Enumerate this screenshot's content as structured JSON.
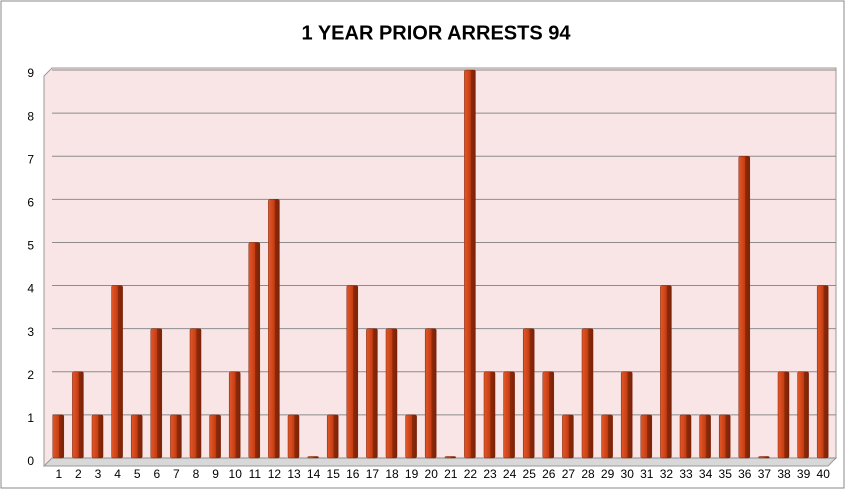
{
  "chart_data": {
    "type": "bar",
    "title": "1 YEAR PRIOR ARRESTS 94",
    "categories": [
      "1",
      "2",
      "3",
      "4",
      "5",
      "6",
      "7",
      "8",
      "9",
      "10",
      "11",
      "12",
      "13",
      "14",
      "15",
      "16",
      "17",
      "18",
      "19",
      "20",
      "21",
      "22",
      "23",
      "24",
      "25",
      "26",
      "27",
      "28",
      "29",
      "30",
      "31",
      "32",
      "33",
      "34",
      "35",
      "36",
      "37",
      "38",
      "39",
      "40"
    ],
    "values": [
      1,
      2,
      1,
      4,
      1,
      3,
      1,
      3,
      1,
      2,
      5,
      6,
      1,
      0,
      1,
      4,
      3,
      3,
      1,
      3,
      0,
      9,
      2,
      2,
      3,
      2,
      1,
      3,
      1,
      2,
      1,
      4,
      1,
      1,
      1,
      7,
      0,
      2,
      2,
      4
    ],
    "color": "#c43d12",
    "ylim": [
      0,
      9
    ],
    "yticks": [
      0,
      1,
      2,
      3,
      4,
      5,
      6,
      7,
      8,
      9
    ],
    "grid": true
  }
}
